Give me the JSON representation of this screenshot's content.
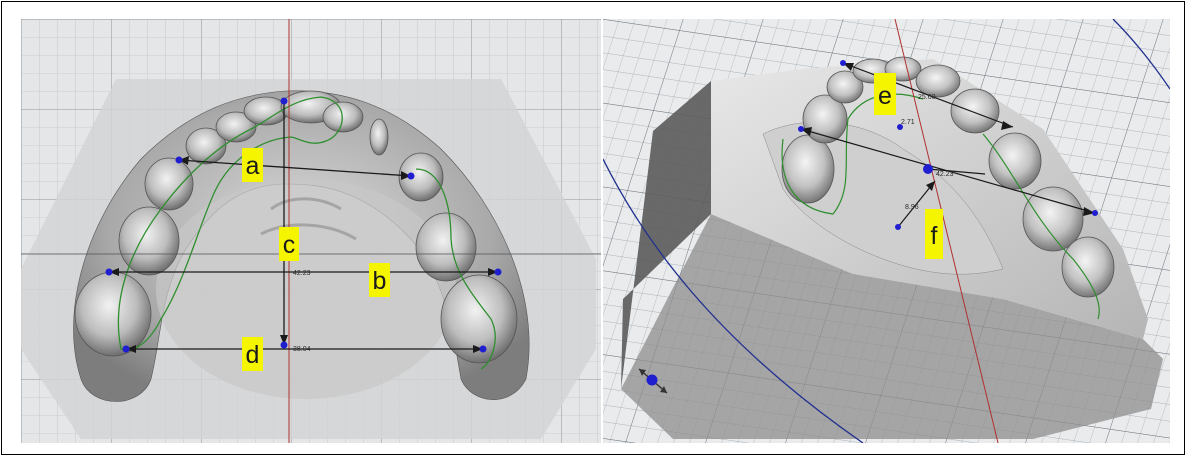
{
  "left_view": {
    "labels": [
      "a",
      "b",
      "c",
      "d"
    ],
    "measurements": [
      "42.23",
      "38.04"
    ]
  },
  "right_view": {
    "labels": [
      "e",
      "f"
    ],
    "measurements": [
      "25.60",
      "2.71",
      "8.96",
      "42.23"
    ]
  },
  "colors": {
    "label_highlight": "#f5f500",
    "landmark_point": "#1f1fd0",
    "outline": "#2f8f2f",
    "axis_line": "#b03030",
    "grid_line": "#9aa0a6"
  }
}
